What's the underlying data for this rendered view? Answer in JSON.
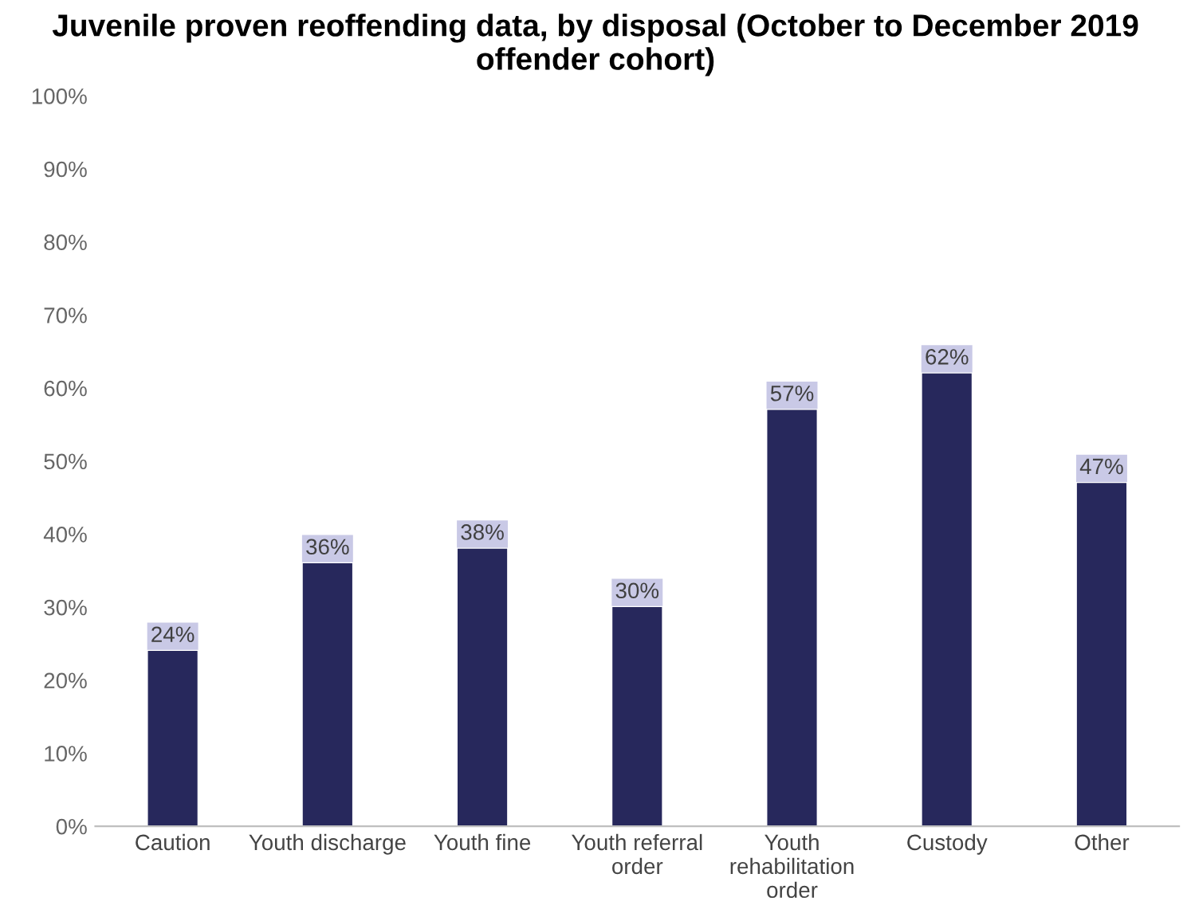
{
  "chart_data": {
    "type": "bar",
    "title": "Juvenile proven reoffending data, by disposal (October to December 2019 offender cohort)",
    "categories": [
      "Caution",
      "Youth discharge",
      "Youth fine",
      "Youth referral order",
      "Youth rehabilitation order",
      "Custody",
      "Other"
    ],
    "values": [
      24,
      36,
      38,
      30,
      57,
      62,
      47
    ],
    "value_labels": [
      "24%",
      "36%",
      "38%",
      "30%",
      "57%",
      "62%",
      "47%"
    ],
    "color": "#27285c",
    "ylim": [
      0,
      100
    ],
    "yticks": [
      {
        "value": 0,
        "label": "0%"
      },
      {
        "value": 10,
        "label": "10%"
      },
      {
        "value": 20,
        "label": "20%"
      },
      {
        "value": 30,
        "label": "30%"
      },
      {
        "value": 40,
        "label": "40%"
      },
      {
        "value": 50,
        "label": "50%"
      },
      {
        "value": 60,
        "label": "60%"
      },
      {
        "value": 70,
        "label": "70%"
      },
      {
        "value": 80,
        "label": "80%"
      },
      {
        "value": 90,
        "label": "90%"
      },
      {
        "value": 100,
        "label": "100%"
      }
    ],
    "grid": false,
    "legend": false
  }
}
